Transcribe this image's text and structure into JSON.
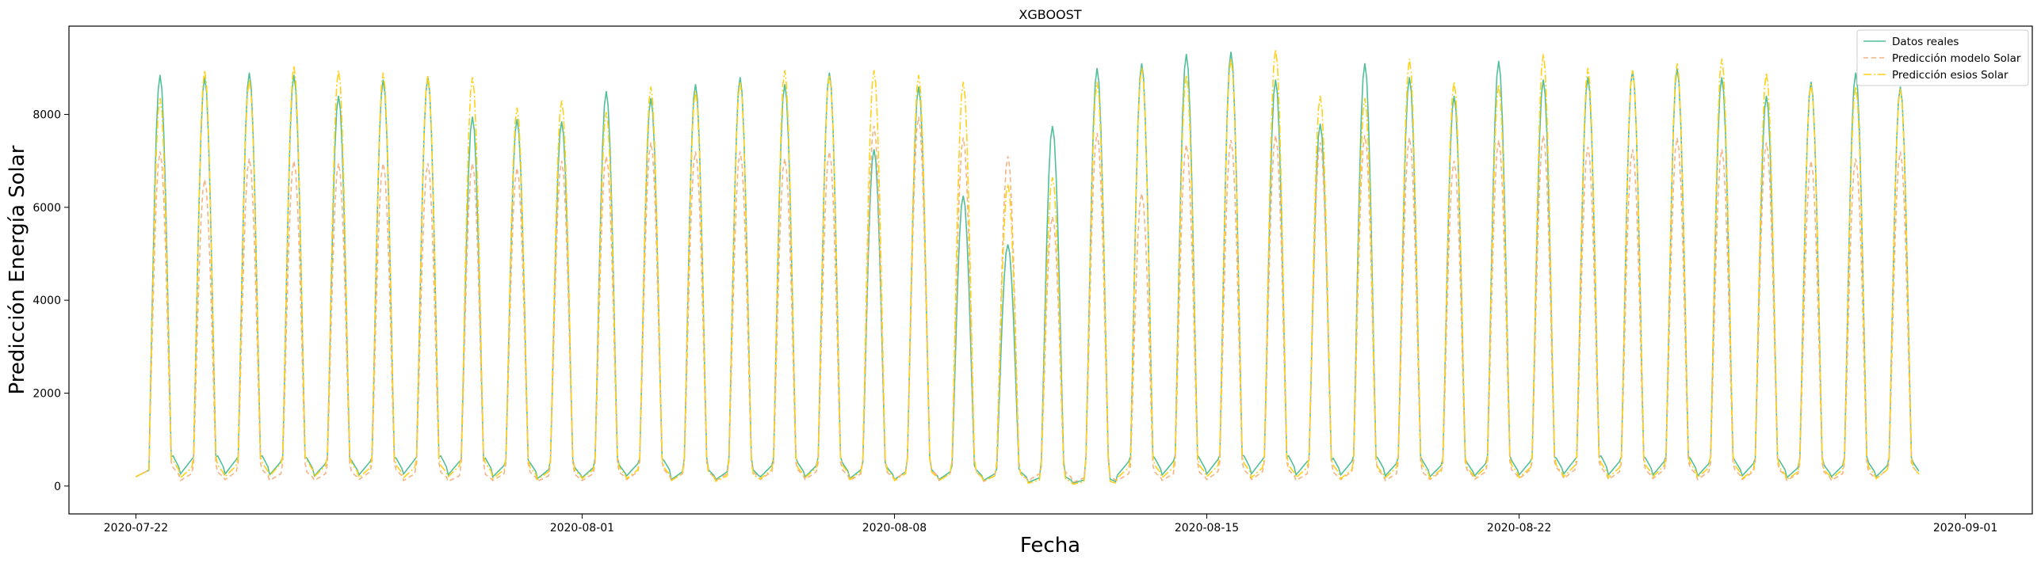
{
  "chart_data": {
    "type": "line",
    "title": "XGBOOST",
    "xlabel": "Fecha",
    "ylabel": "Predicción Energía Solar",
    "x_range": [
      "2020-07-20T12:00",
      "2020-09-02T12:00"
    ],
    "ylim": [
      -600,
      9900
    ],
    "grid": false,
    "legend_position": "top-right",
    "x_ticks": [
      "2020-07-22",
      "2020-08-01",
      "2020-08-08",
      "2020-08-15",
      "2020-08-22",
      "2020-09-01"
    ],
    "y_ticks": [
      0,
      2000,
      4000,
      6000,
      8000
    ],
    "start_date": "2020-07-22",
    "series": [
      {
        "name": "Datos reales",
        "color": "#52bf9b",
        "dash": "",
        "daily_peaks": [
          8850,
          8800,
          8900,
          8850,
          8400,
          8750,
          8800,
          7950,
          7900,
          7850,
          8500,
          8350,
          8650,
          8800,
          8650,
          8900,
          7250,
          8600,
          6250,
          5200,
          7750,
          9000,
          9100,
          9300,
          9350,
          8750,
          7800,
          9100,
          8800,
          8400,
          9150,
          8750,
          8800,
          8950,
          9000,
          8800,
          8400,
          8700,
          8900,
          8600
        ],
        "night_levels": [
          650,
          650,
          650,
          600,
          550,
          600,
          650,
          600,
          500,
          400,
          450,
          550,
          350,
          350,
          500,
          500,
          400,
          350,
          350,
          300,
          200,
          150,
          600,
          600,
          650,
          650,
          600,
          600,
          550,
          500,
          550,
          600,
          650,
          600,
          600,
          550,
          550,
          450,
          500,
          500
        ]
      },
      {
        "name": "Predicción modelo Solar",
        "color": "#f5b383",
        "dash": "6,4",
        "daily_peaks": [
          7200,
          6600,
          7050,
          7000,
          6950,
          6950,
          6950,
          6950,
          6850,
          7000,
          7100,
          7400,
          7200,
          7200,
          7050,
          7200,
          7750,
          7950,
          7500,
          7100,
          5800,
          7600,
          6300,
          7350,
          7450,
          7550,
          7400,
          7550,
          7500,
          7000,
          7450,
          7550,
          7300,
          7250,
          7500,
          7250,
          7400,
          7000,
          7050,
          7200
        ],
        "night_levels": [
          400,
          300,
          350,
          300,
          300,
          350,
          300,
          250,
          300,
          250,
          300,
          350,
          300,
          300,
          350,
          350,
          300,
          350,
          300,
          250,
          300,
          200,
          300,
          300,
          350,
          350,
          300,
          350,
          300,
          350,
          350,
          400,
          400,
          350,
          400,
          350,
          350,
          300,
          300,
          400
        ]
      },
      {
        "name": "Predicción esios Solar",
        "color": "#ffd11a",
        "dash": "10,3,2,3",
        "daily_peaks": [
          8350,
          8950,
          8750,
          9050,
          8950,
          8900,
          8850,
          8800,
          8150,
          8300,
          8050,
          8600,
          8500,
          8700,
          8950,
          8850,
          8950,
          8850,
          8700,
          6500,
          6650,
          8700,
          9000,
          8850,
          9200,
          9400,
          8400,
          8350,
          9200,
          8700,
          8650,
          9300,
          9000,
          8950,
          9100,
          9200,
          8900,
          8650,
          8600,
          8550
        ],
        "night_levels": [
          550,
          450,
          500,
          550,
          500,
          450,
          450,
          500,
          400,
          350,
          400,
          400,
          300,
          250,
          400,
          450,
          350,
          300,
          300,
          250,
          150,
          100,
          450,
          450,
          500,
          450,
          450,
          400,
          450,
          400,
          450,
          450,
          500,
          450,
          500,
          450,
          400,
          350,
          400,
          400
        ]
      }
    ]
  }
}
